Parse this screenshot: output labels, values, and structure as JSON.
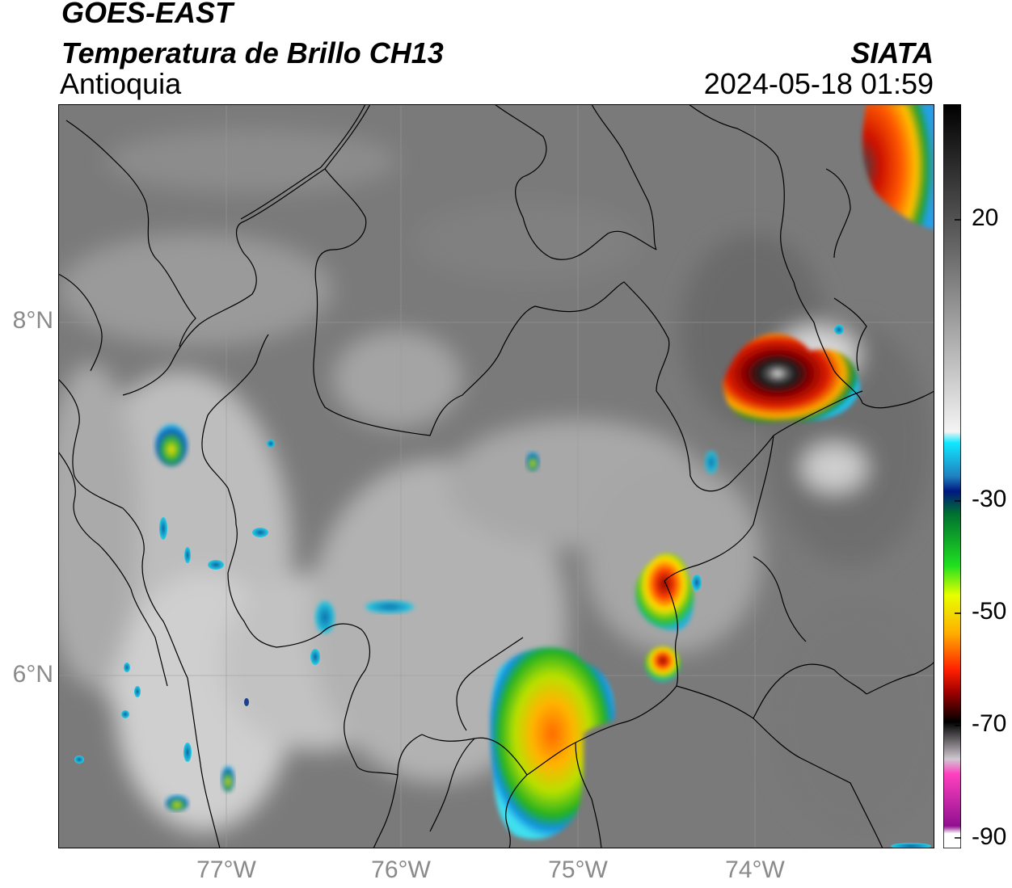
{
  "header": {
    "satellite": "GOES-EAST",
    "product": "Temperatura de Brillo CH13",
    "region": "Antioquia",
    "organization": "SIATA",
    "timestamp": "2024-05-18 01:59"
  },
  "axes": {
    "lat_ticks": [
      "8°N",
      "6°N"
    ],
    "lon_ticks": [
      "77°W",
      "76°W",
      "75°W",
      "74°W"
    ]
  },
  "colorbar": {
    "labels": [
      "20",
      "-30",
      "-50",
      "-70",
      "-90"
    ]
  },
  "colors": {
    "land_gray": "#7a7a7a",
    "cold_red": "#d01010",
    "border": "#000000"
  }
}
